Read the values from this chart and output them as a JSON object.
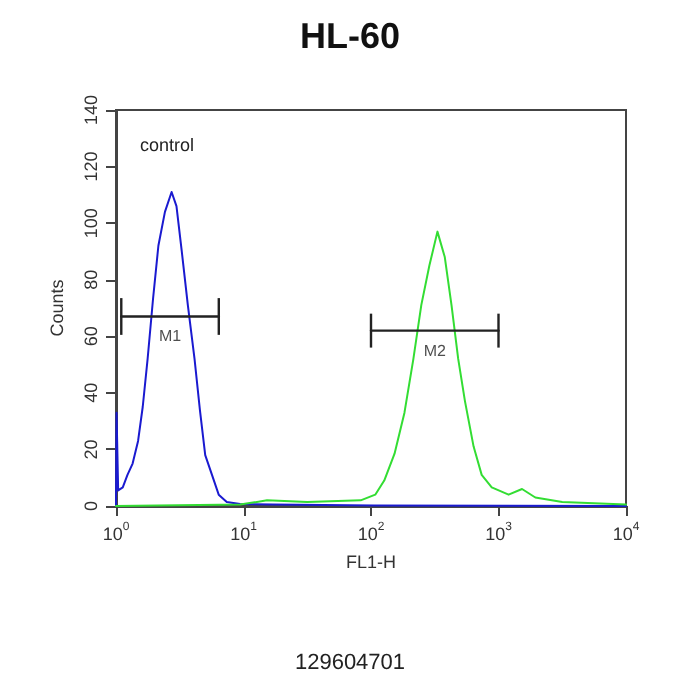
{
  "chart_data": {
    "type": "line",
    "title": "HL-60",
    "xlabel": "FL1-H",
    "ylabel": "Counts",
    "log": "x",
    "xlim": [
      1,
      10000
    ],
    "xticks": [
      {
        "value": 1,
        "label": "10$^{0}$"
      },
      {
        "value": 10,
        "label": "10$^{1}$"
      },
      {
        "value": 100,
        "label": "10$^{2}$"
      },
      {
        "value": 1000,
        "label": "10$^{3}$"
      },
      {
        "value": 10000,
        "label": "10$^{4}$"
      }
    ],
    "ylim": [
      0,
      140
    ],
    "yticks": [
      0,
      20,
      40,
      60,
      80,
      100,
      120,
      140
    ],
    "grid": false,
    "legend": false,
    "marker": "none",
    "line_style": "solid",
    "annotations": [
      "control",
      "129604701"
    ],
    "series": [
      {
        "color": "#1a1ad0",
        "x": [
          1,
          1.01,
          1.04,
          1.13,
          1.23,
          1.35,
          1.49,
          1.62,
          1.77,
          1.95,
          2.15,
          2.42,
          2.73,
          2.98,
          3.28,
          3.66,
          4.13,
          4.55,
          5.01,
          5.66,
          6.39,
          7.39,
          9.4,
          17,
          106,
          10000
        ],
        "values": [
          0,
          33,
          5.5,
          6.6,
          11,
          15,
          23,
          35,
          52,
          73,
          92,
          104,
          111,
          106,
          90,
          71,
          52,
          34,
          18,
          11,
          4,
          1.4,
          0.7,
          0.5,
          0.2,
          0
        ]
      },
      {
        "color": "#33dd33",
        "x": [
          1,
          9.4,
          15.3,
          31.6,
          83,
          108,
          127,
          153,
          183,
          215,
          248,
          287,
          332,
          379,
          428,
          483,
          546,
          638,
          738,
          885,
          1200,
          1530,
          1945,
          3160,
          10000
        ],
        "values": [
          0,
          0.5,
          2,
          1.4,
          2,
          4,
          9,
          18.5,
          33,
          52,
          71,
          85,
          97,
          88,
          71,
          52,
          37,
          21,
          11,
          6.6,
          4,
          6,
          3,
          1.4,
          0.5
        ]
      },
      {
        "name": "M1",
        "color": "#222222",
        "x": [
          1.1,
          6.4
        ],
        "values": [
          67,
          67
        ],
        "errors": [
          6.5,
          6.5
        ]
      },
      {
        "name": "M2",
        "color": "#222222",
        "x": [
          100,
          1000
        ],
        "values": [
          62,
          62
        ],
        "errors": [
          6,
          6
        ]
      }
    ]
  }
}
